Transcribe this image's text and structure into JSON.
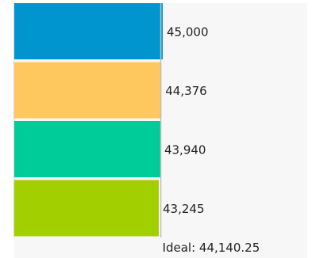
{
  "chart_data": {
    "type": "bar",
    "orientation": "horizontal",
    "categories": [
      "",
      "",
      "",
      ""
    ],
    "values": [
      45000,
      44376,
      43940,
      43245
    ],
    "value_labels": [
      "45,000",
      "44,376",
      "43,940",
      "43,245"
    ],
    "colors": [
      "#0095CF",
      "#FFC85F",
      "#00CC99",
      "#A1CF00"
    ],
    "reference_line": {
      "label": "Ideal: 44,140.25",
      "value": 44140.25
    },
    "grid": false,
    "legend": "none"
  }
}
